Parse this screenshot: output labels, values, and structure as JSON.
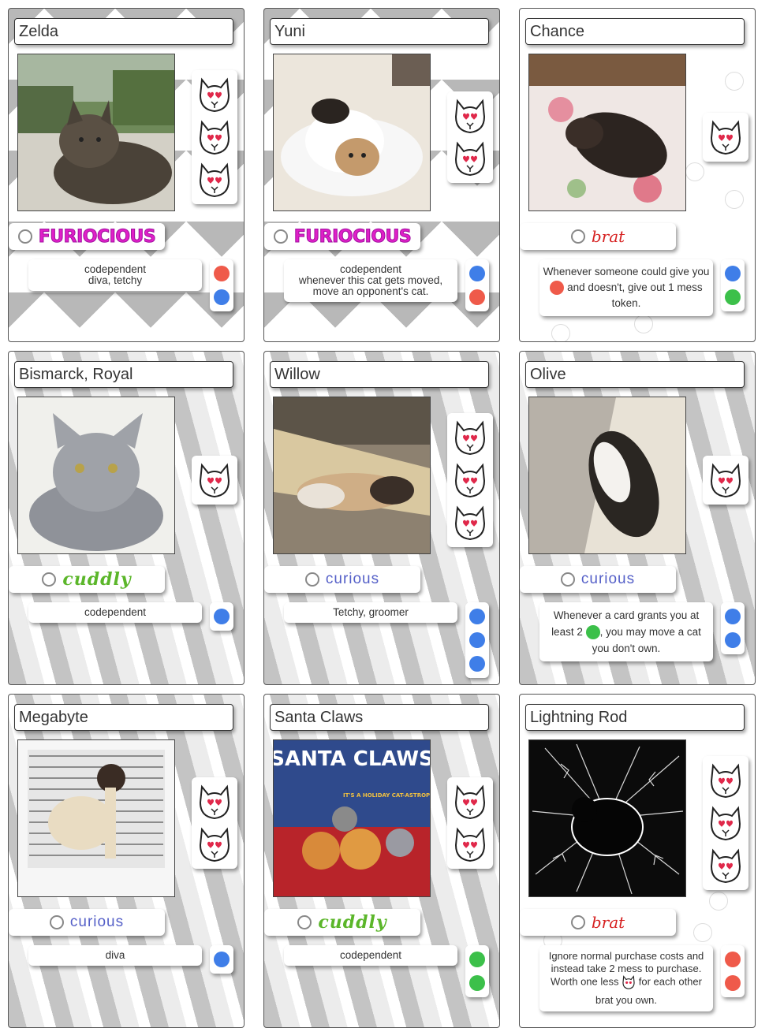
{
  "cards": [
    {
      "name": "Zelda",
      "hearts": 3,
      "type": "FURIOCIOUS",
      "type_style": "furious",
      "traits": [
        "codependent",
        "diva, tetchy"
      ],
      "tokens": [
        "red",
        "blue"
      ],
      "bg": "chevron"
    },
    {
      "name": "Yuni",
      "hearts": 2,
      "type": "FURIOCIOUS",
      "type_style": "furious",
      "traits": [
        "codependent",
        "whenever this cat gets moved,",
        "move an opponent's cat."
      ],
      "tokens": [
        "blue",
        "red"
      ],
      "bg": "chevron"
    },
    {
      "name": "Chance",
      "hearts": 1,
      "type": "brat",
      "type_style": "brat",
      "ability": {
        "before": "Whenever someone could give you",
        "token": "red",
        "after": "and doesn't, give out 1 mess",
        "end": "token."
      },
      "tokens": [
        "blue",
        "green"
      ],
      "bg": "plain"
    },
    {
      "name": "Bismarck, Royal",
      "hearts": 1,
      "type": "cuddly",
      "type_style": "cuddly",
      "traits": [
        "codependent"
      ],
      "tokens": [
        "blue"
      ],
      "bg": "swirl"
    },
    {
      "name": "Willow",
      "hearts": 3,
      "type": "curious",
      "type_style": "curious",
      "traits": [
        "Tetchy, groomer"
      ],
      "tokens": [
        "blue",
        "blue",
        "blue"
      ],
      "bg": "swirl"
    },
    {
      "name": "Olive",
      "hearts": 1,
      "type": "curious",
      "type_style": "curious",
      "ability": {
        "before": "Whenever a card grants you at",
        "pre": "least 2",
        "token": "green",
        "after": ", you may move a cat",
        "end": "you don't own."
      },
      "tokens": [
        "blue",
        "blue"
      ],
      "bg": "swirl"
    },
    {
      "name": "Megabyte",
      "hearts": 2,
      "type": "curious",
      "type_style": "curious",
      "traits": [
        "diva"
      ],
      "tokens": [
        "blue"
      ],
      "bg": "swirl"
    },
    {
      "name": "Santa Claws",
      "hearts": 2,
      "type": "cuddly",
      "type_style": "cuddly",
      "traits": [
        "codependent"
      ],
      "tokens": [
        "green",
        "green"
      ],
      "bg": "swirl"
    },
    {
      "name": "Lightning Rod",
      "hearts": 3,
      "type": "brat",
      "type_style": "brat",
      "ability": {
        "l1": "Ignore normal purchase costs and",
        "l2": "instead take 2 mess to purchase.",
        "l3a": "Worth one less",
        "l3b": "for each other",
        "l4": "brat you own."
      },
      "tokens": [
        "red",
        "red"
      ],
      "bg": "plain"
    }
  ],
  "photo_text": {
    "santa_title": "SANTA CLAWS",
    "santa_tag": "IT'S A HOLIDAY CAT-ASTROPHE!"
  },
  "colors": {
    "red": "#ef5a4a",
    "blue": "#3f7ee8",
    "green": "#3cc04a",
    "furious": "#e020c8",
    "brat": "#d62020",
    "cuddly": "#5bb62a",
    "curious": "#5560c8"
  }
}
